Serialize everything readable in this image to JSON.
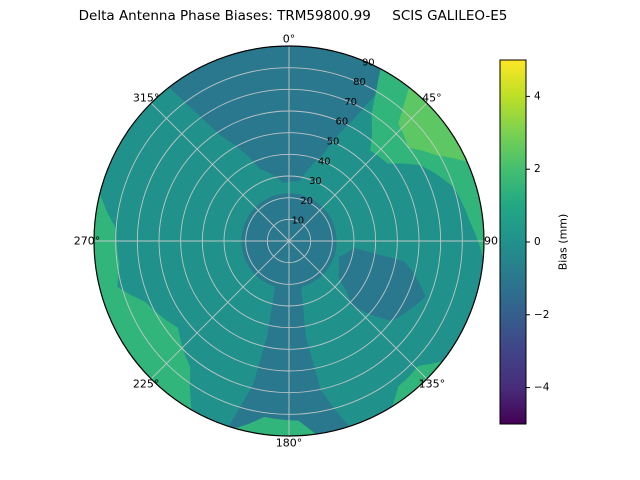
{
  "chart_data": {
    "type": "polar_contour",
    "title": "Delta Antenna Phase Biases: TRM59800.99     SCIS GALILEO-E5",
    "antenna": "TRM59800.99",
    "calibration": "SCIS",
    "signal": "GALILEO-E5",
    "azimuth_labels": [
      {
        "angle": 0,
        "label": "0°"
      },
      {
        "angle": 45,
        "label": "45°"
      },
      {
        "angle": 90,
        "label": "90"
      },
      {
        "angle": 135,
        "label": "135°"
      },
      {
        "angle": 180,
        "label": "180°"
      },
      {
        "angle": 225,
        "label": "225°"
      },
      {
        "angle": 270,
        "label": "270°"
      },
      {
        "angle": 315,
        "label": "315°"
      }
    ],
    "radial_ticks": [
      10,
      20,
      30,
      40,
      50,
      60,
      70,
      80,
      90
    ],
    "r_max": 90,
    "radial_label_angle": 24,
    "grid": true,
    "base_value_band_mm": "0 to 1",
    "base_color": "#21918c",
    "regions": [
      {
        "name": "band-neg1-0-top",
        "value_band_mm": "-1 to 0",
        "color": "#2a788e",
        "points": [
          [
            -38,
            90
          ],
          [
            -33,
            58
          ],
          [
            -22,
            36
          ],
          [
            -6,
            27
          ],
          [
            10,
            28
          ],
          [
            21,
            42
          ],
          [
            28,
            64
          ],
          [
            32,
            90
          ]
        ]
      },
      {
        "name": "band-neg1-0-bottom",
        "value_band_mm": "-1 to 0",
        "color": "#2a788e",
        "points": [
          [
            165,
            22
          ],
          [
            170,
            45
          ],
          [
            168,
            70
          ],
          [
            162,
            90
          ],
          [
            198,
            90
          ],
          [
            194,
            68
          ],
          [
            193,
            45
          ],
          [
            197,
            22
          ]
        ]
      },
      {
        "name": "band-neg1-0-center",
        "value_band_mm": "-1 to 0",
        "color": "#2a788e",
        "circle_r": 22
      },
      {
        "name": "band-neg1-0-right",
        "value_band_mm": "-1 to 0",
        "color": "#2a788e",
        "points": [
          [
            96,
            30
          ],
          [
            100,
            54
          ],
          [
            112,
            68
          ],
          [
            128,
            60
          ],
          [
            136,
            42
          ],
          [
            126,
            28
          ],
          [
            108,
            24
          ]
        ]
      },
      {
        "name": "band-1-2-upper-right",
        "value_band_mm": "1 to 2",
        "color": "#31b57b",
        "points": [
          [
            28,
            90
          ],
          [
            33,
            70
          ],
          [
            42,
            56
          ],
          [
            52,
            58
          ],
          [
            60,
            70
          ],
          [
            72,
            80
          ],
          [
            84,
            84
          ],
          [
            95,
            90
          ]
        ]
      },
      {
        "name": "band-2-3-upper-right",
        "value_band_mm": "2 to 3",
        "color": "#5dc863",
        "points": [
          [
            38,
            90
          ],
          [
            43,
            74
          ],
          [
            52,
            70
          ],
          [
            60,
            79
          ],
          [
            66,
            90
          ]
        ]
      },
      {
        "name": "band-1-2-lower-left",
        "value_band_mm": "1 to 2",
        "color": "#31b57b",
        "points": [
          [
            210,
            90
          ],
          [
            218,
            74
          ],
          [
            232,
            65
          ],
          [
            247,
            72
          ],
          [
            255,
            82
          ],
          [
            262,
            79
          ],
          [
            274,
            80
          ],
          [
            284,
            90
          ]
        ]
      },
      {
        "name": "band-1-2-bottom",
        "value_band_mm": "1 to 2",
        "color": "#31b57b",
        "points": [
          [
            172,
            90
          ],
          [
            177,
            83
          ],
          [
            188,
            82
          ],
          [
            196,
            90
          ]
        ]
      },
      {
        "name": "band-1-2-lower-right",
        "value_band_mm": "1 to 2",
        "color": "#31b57b",
        "points": [
          [
            128,
            90
          ],
          [
            134,
            83
          ],
          [
            143,
            84
          ],
          [
            148,
            90
          ]
        ]
      }
    ],
    "colorbar": {
      "label": "Bias (mm)",
      "vmin": -5,
      "vmax": 5,
      "colormap": "viridis",
      "ticks": [
        {
          "value": 4,
          "label": "4"
        },
        {
          "value": 2,
          "label": "2"
        },
        {
          "value": 0,
          "label": "0"
        },
        {
          "value": -2,
          "label": "−2"
        },
        {
          "value": -4,
          "label": "−4"
        }
      ],
      "gradient_stops": [
        [
          "0%",
          "#fde725"
        ],
        [
          "10%",
          "#bddf26"
        ],
        [
          "20%",
          "#7ad151"
        ],
        [
          "30%",
          "#44bf70"
        ],
        [
          "40%",
          "#22a884"
        ],
        [
          "50%",
          "#21918c"
        ],
        [
          "60%",
          "#2a788e"
        ],
        [
          "70%",
          "#355f8d"
        ],
        [
          "80%",
          "#414487"
        ],
        [
          "90%",
          "#472d7b"
        ],
        [
          "100%",
          "#440154"
        ]
      ]
    }
  }
}
